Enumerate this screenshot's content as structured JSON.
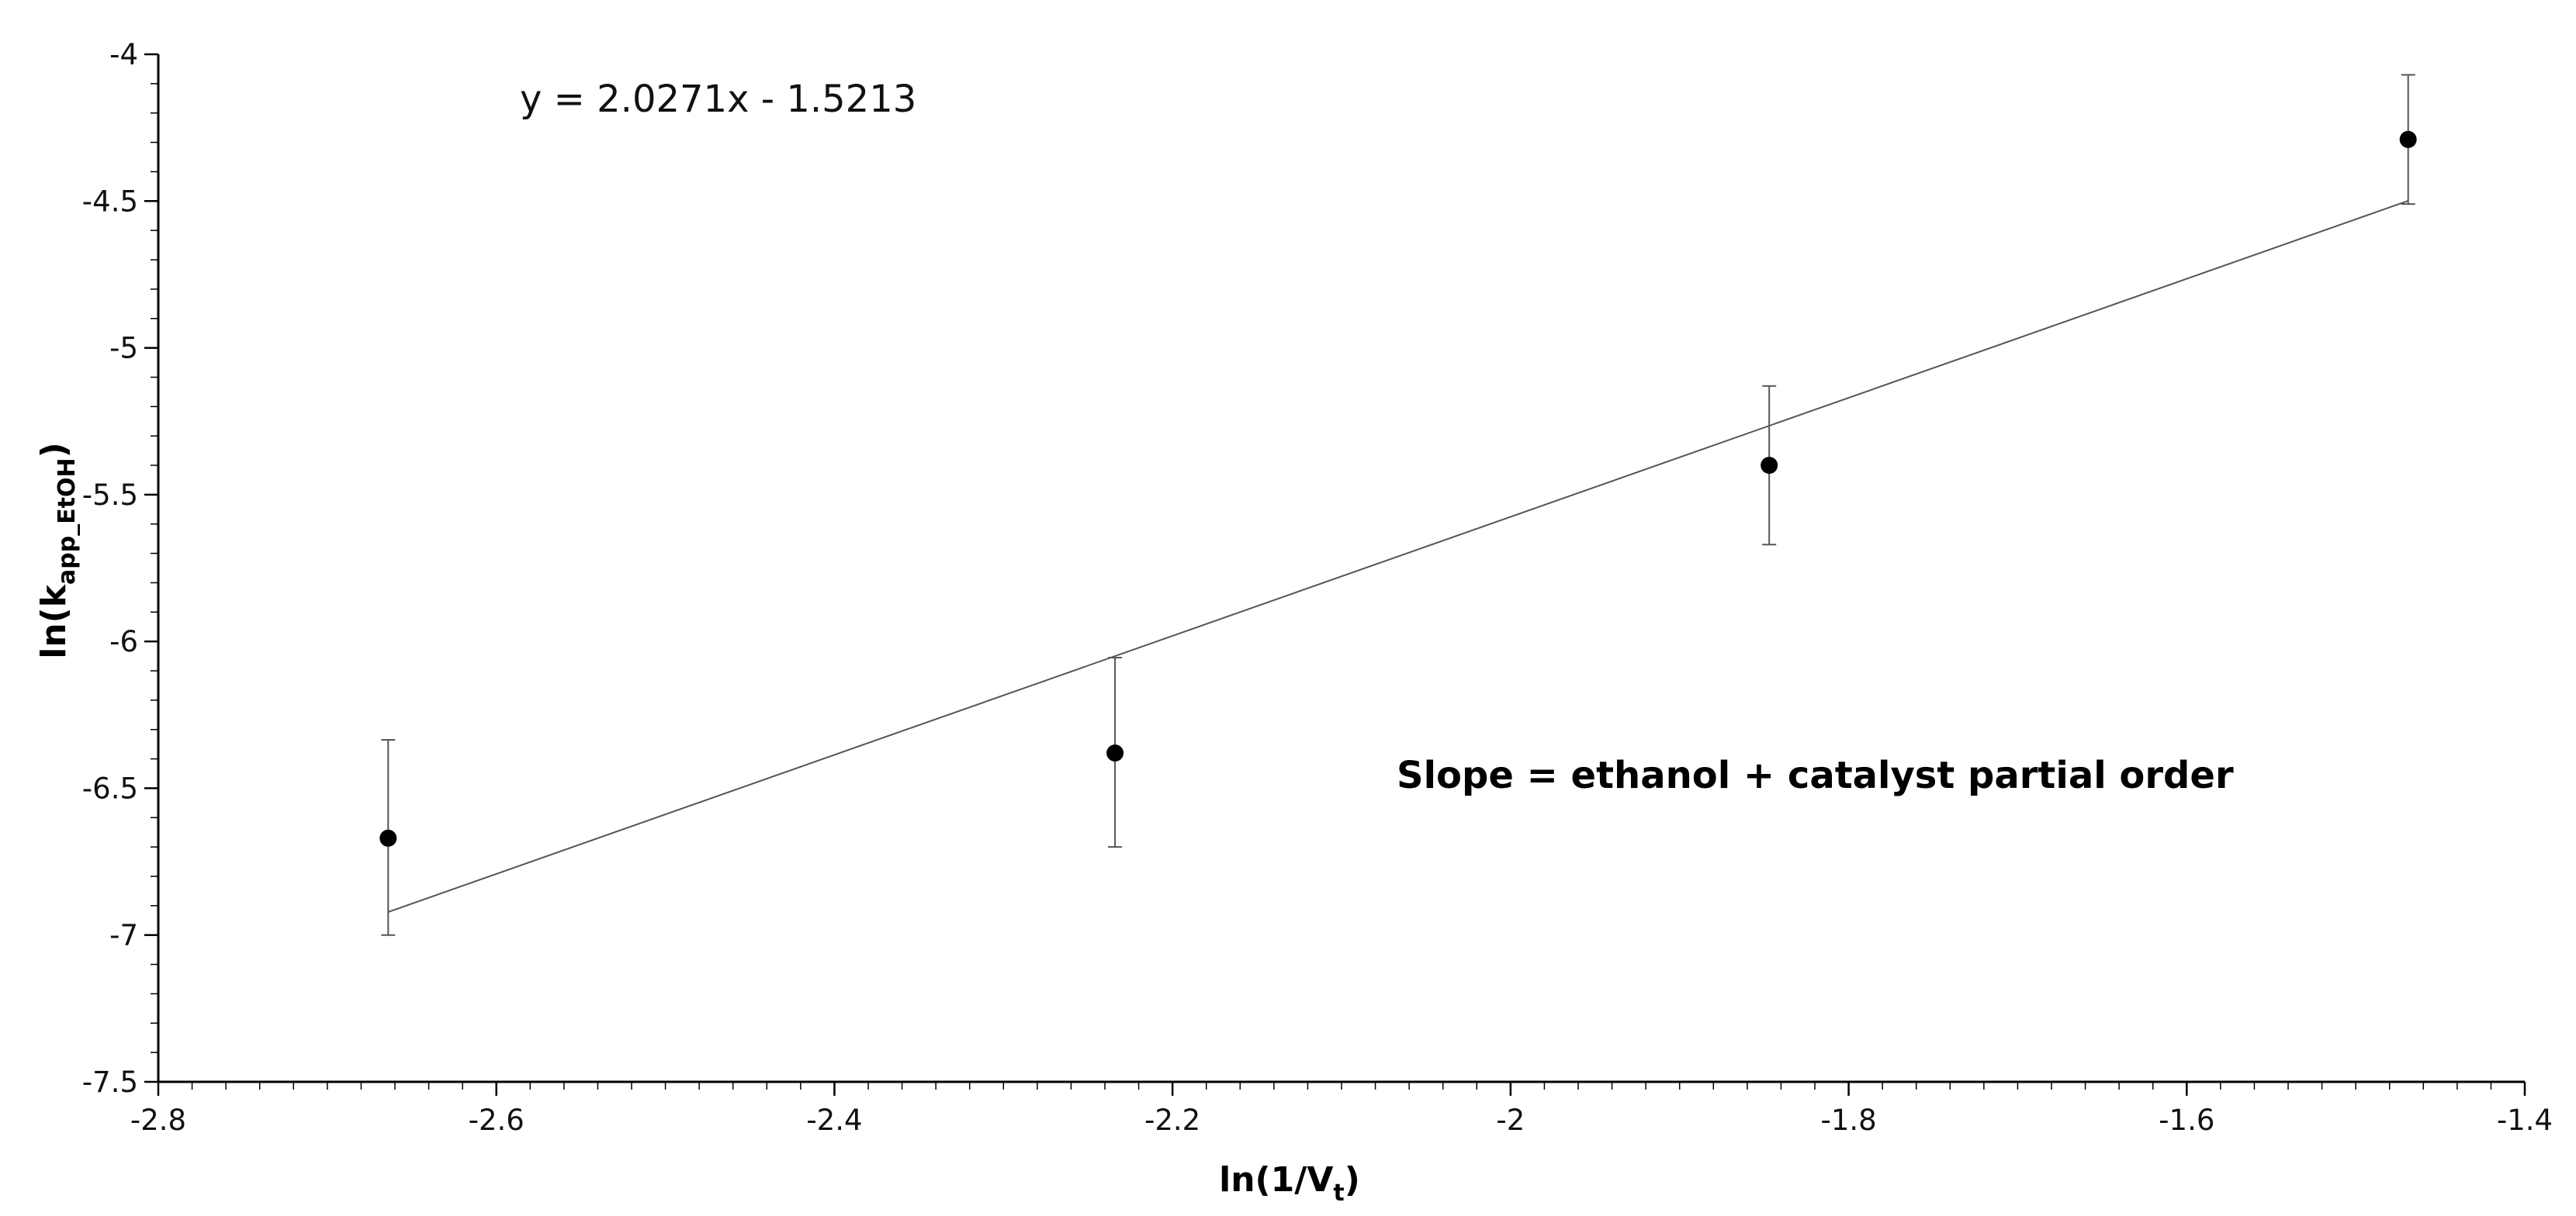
{
  "chart_data": {
    "type": "scatter",
    "x_axis": {
      "label_main": "ln(1/V",
      "label_sub": "t",
      "label_end": ")",
      "range": [
        -2.8,
        -1.4
      ],
      "ticks": [
        -2.8,
        -2.6,
        -2.4,
        -2.2,
        -2,
        -1.8,
        -1.6,
        -1.4
      ],
      "tick_labels": [
        "-2.8",
        "-2.6",
        "-2.4",
        "-2.2",
        "-2",
        "-1.8",
        "-1.6",
        "-1.4"
      ]
    },
    "y_axis": {
      "label_main": "ln(k",
      "label_sub": "app_EtOH",
      "label_end": ")",
      "range": [
        -7.5,
        -4
      ],
      "ticks": [
        -7.5,
        -7,
        -6.5,
        -6,
        -5.5,
        -5,
        -4.5,
        -4
      ],
      "tick_labels": [
        "-7.5",
        "-7",
        "-6.5",
        "-6",
        "-5.5",
        "-5",
        "-4.5",
        "-4"
      ]
    },
    "points": [
      {
        "x": -2.664,
        "y": -6.67,
        "y_low": -7.0,
        "y_high": -6.335
      },
      {
        "x": -2.234,
        "y": -6.38,
        "y_low": -6.7,
        "y_high": -6.055
      },
      {
        "x": -1.847,
        "y": -5.4,
        "y_low": -5.67,
        "y_high": -5.13
      },
      {
        "x": -1.469,
        "y": -4.29,
        "y_low": -4.51,
        "y_high": -4.07
      }
    ],
    "trendline": {
      "slope": 2.0271,
      "intercept": -1.5213,
      "x_start": -2.664,
      "x_end": -1.469,
      "equation": "y = 2.0271x - 1.5213"
    },
    "annotation": "Slope = ethanol + catalyst partial order",
    "grid": false,
    "legend": "none"
  }
}
